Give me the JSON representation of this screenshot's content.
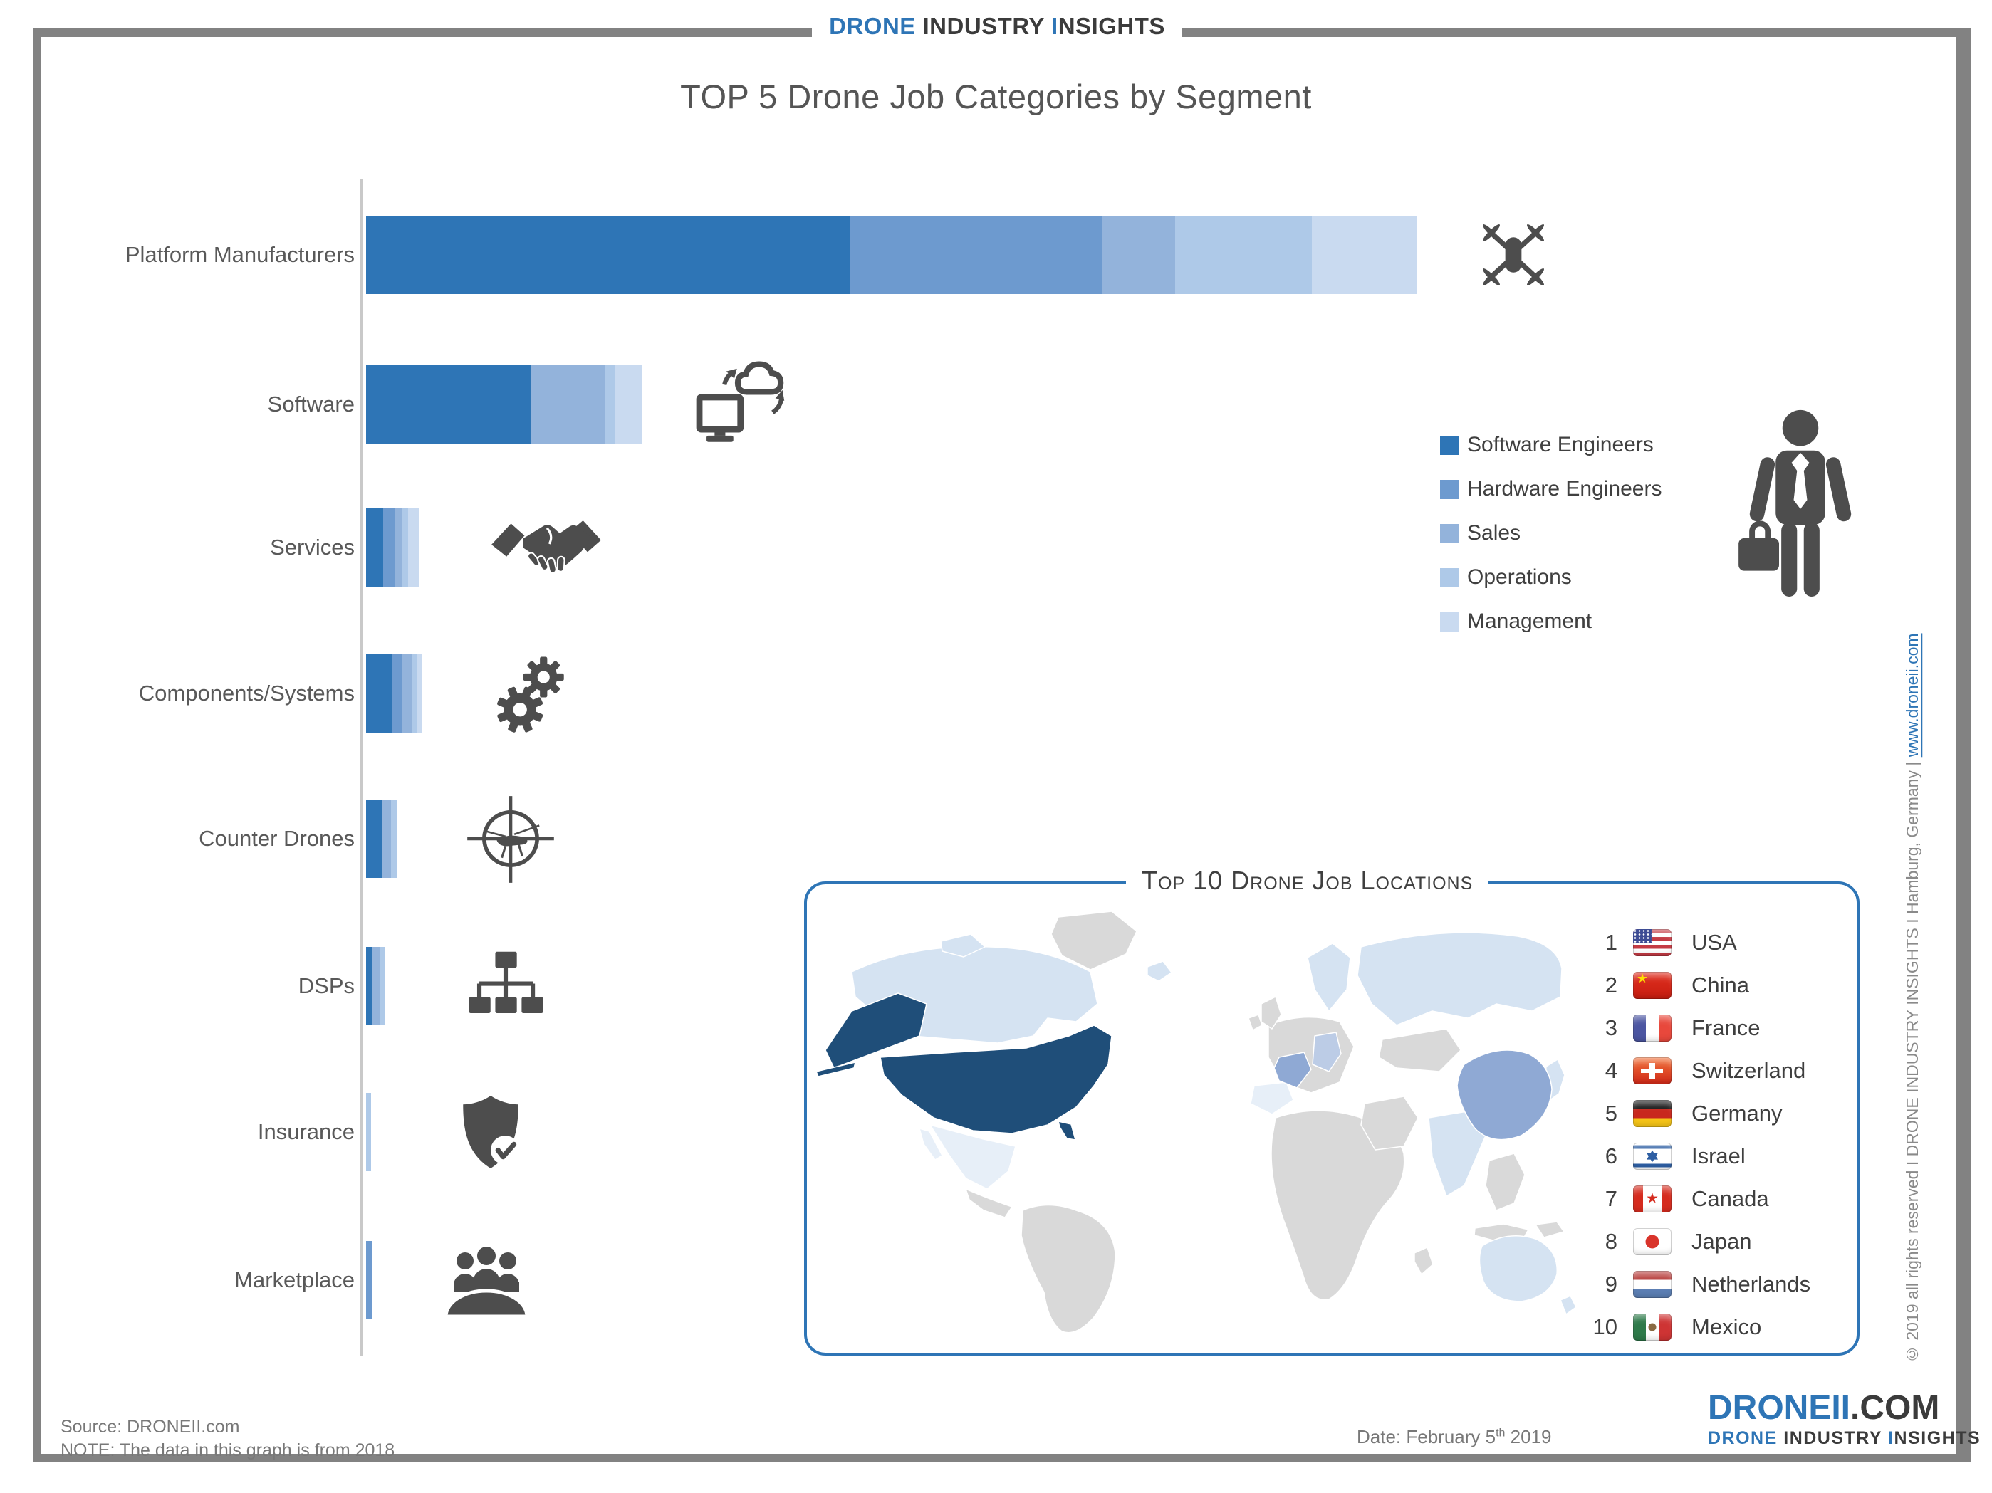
{
  "header": {
    "brand_drone": "DRONE",
    "brand_industry": "INDUSTRY",
    "brand_insights_i": "I",
    "brand_insights_rest": "NSIGHTS"
  },
  "chart_data": {
    "type": "bar",
    "orientation": "horizontal-stacked",
    "title": "TOP 5 Drone Job Categories by Segment",
    "value_note": "values estimated from bar lengths, % of longest bar (Platform Manufacturers = 100)",
    "xlim": [
      0,
      100
    ],
    "grid": false,
    "legend_position": "right",
    "series_names": [
      "Software Engineers",
      "Hardware Engineers",
      "Sales",
      "Operations",
      "Management"
    ],
    "series_colors": {
      "Software Engineers": "#2E75B6",
      "Hardware Engineers": "#6D9ACF",
      "Sales": "#93B3DB",
      "Operations": "#AEC9E8",
      "Management": "#C9DAF0"
    },
    "rows": [
      {
        "label": "Platform Manufacturers",
        "icon": "drone-icon",
        "segments": [
          {
            "series": "Software Engineers",
            "value": 46
          },
          {
            "series": "Hardware Engineers",
            "value": 24
          },
          {
            "series": "Sales",
            "value": 7
          },
          {
            "series": "Operations",
            "value": 13
          },
          {
            "series": "Management",
            "value": 10
          }
        ]
      },
      {
        "label": "Software",
        "icon": "cloud-computing-icon",
        "segments": [
          {
            "series": "Software Engineers",
            "value": 15.7
          },
          {
            "series": "Sales",
            "value": 7
          },
          {
            "series": "Operations",
            "value": 1
          },
          {
            "series": "Management",
            "value": 2.6
          }
        ]
      },
      {
        "label": "Services",
        "icon": "handshake-icon",
        "segments": [
          {
            "series": "Software Engineers",
            "value": 1.6
          },
          {
            "series": "Hardware Engineers",
            "value": 1.2
          },
          {
            "series": "Sales",
            "value": 0.6
          },
          {
            "series": "Operations",
            "value": 0.6
          },
          {
            "series": "Management",
            "value": 1.0
          }
        ]
      },
      {
        "label": "Components/Systems",
        "icon": "gears-icon",
        "segments": [
          {
            "series": "Software Engineers",
            "value": 2.5
          },
          {
            "series": "Hardware Engineers",
            "value": 0.9
          },
          {
            "series": "Sales",
            "value": 1.0
          },
          {
            "series": "Operations",
            "value": 0.5
          },
          {
            "series": "Management",
            "value": 0.4
          }
        ]
      },
      {
        "label": "Counter Drones",
        "icon": "counter-drone-icon",
        "segments": [
          {
            "series": "Software Engineers",
            "value": 1.5
          },
          {
            "series": "Sales",
            "value": 0.9
          },
          {
            "series": "Operations",
            "value": 0.5
          }
        ]
      },
      {
        "label": "DSPs",
        "icon": "sitemap-icon",
        "segments": [
          {
            "series": "Software Engineers",
            "value": 0.55
          },
          {
            "series": "Sales",
            "value": 0.8
          },
          {
            "series": "Operations",
            "value": 0.5
          }
        ]
      },
      {
        "label": "Insurance",
        "icon": "shield-check-icon",
        "segments": [
          {
            "series": "Operations",
            "value": 0.5
          }
        ]
      },
      {
        "label": "Marketplace",
        "icon": "meeting-icon",
        "segments": [
          {
            "series": "Hardware Engineers",
            "value": 0.55
          }
        ]
      }
    ]
  },
  "legend": {
    "items": [
      {
        "label": "Software Engineers",
        "color": "#2E75B6"
      },
      {
        "label": "Hardware Engineers",
        "color": "#6D9ACF"
      },
      {
        "label": "Sales",
        "color": "#93B3DB"
      },
      {
        "label": "Operations",
        "color": "#AEC9E8"
      },
      {
        "label": "Management",
        "color": "#C9DAF0"
      }
    ]
  },
  "locations": {
    "title": "Top 10 Drone Job Locations",
    "items": [
      {
        "rank": 1,
        "country": "USA",
        "flag": "usa"
      },
      {
        "rank": 2,
        "country": "China",
        "flag": "china"
      },
      {
        "rank": 3,
        "country": "France",
        "flag": "france"
      },
      {
        "rank": 4,
        "country": "Switzerland",
        "flag": "switzerland"
      },
      {
        "rank": 5,
        "country": "Germany",
        "flag": "germany"
      },
      {
        "rank": 6,
        "country": "Israel",
        "flag": "israel"
      },
      {
        "rank": 7,
        "country": "Canada",
        "flag": "canada"
      },
      {
        "rank": 8,
        "country": "Japan",
        "flag": "japan"
      },
      {
        "rank": 9,
        "country": "Netherlands",
        "flag": "netherlands"
      },
      {
        "rank": 10,
        "country": "Mexico",
        "flag": "mexico"
      }
    ]
  },
  "map": {
    "border_color": "#2E75B6",
    "palette": {
      "darkest": "#1F4E79",
      "medium": "#8FA9D4",
      "medium-light": "#BCCCE6",
      "light": "#D5E3F2",
      "palest": "#E7EFF8",
      "gray": "#D9D9D9"
    },
    "shading": {
      "USA": "darkest",
      "China": "medium",
      "France": "medium",
      "Germany": "medium-light",
      "Canada": "light",
      "Russia": "light",
      "Scandinavia": "light",
      "Australia": "light",
      "India": "light",
      "Japan": "light",
      "New Zealand": "light",
      "Mexico": "palest",
      "Spain": "palest",
      "other": "gray"
    }
  },
  "sidebar": {
    "copyright": "© 2019 all rights reserved I DRONE INDUSTRY INSIGHTS I Hamburg, Germany | ",
    "link": "www.droneii.com"
  },
  "footer": {
    "source": "Source: DRONEII.com",
    "note": "NOTE: The data in this graph is from 2018",
    "date_prefix": "Date: February 5",
    "date_sup": "th",
    "date_suffix": " 2019",
    "logo_droneii": "DRONEII",
    "logo_com": ".COM",
    "logo_sub_drone": "DRONE",
    "logo_sub_industry": " INDUSTRY ",
    "logo_sub_insights_i": "I",
    "logo_sub_insights_rest": "NSIGHTS"
  }
}
